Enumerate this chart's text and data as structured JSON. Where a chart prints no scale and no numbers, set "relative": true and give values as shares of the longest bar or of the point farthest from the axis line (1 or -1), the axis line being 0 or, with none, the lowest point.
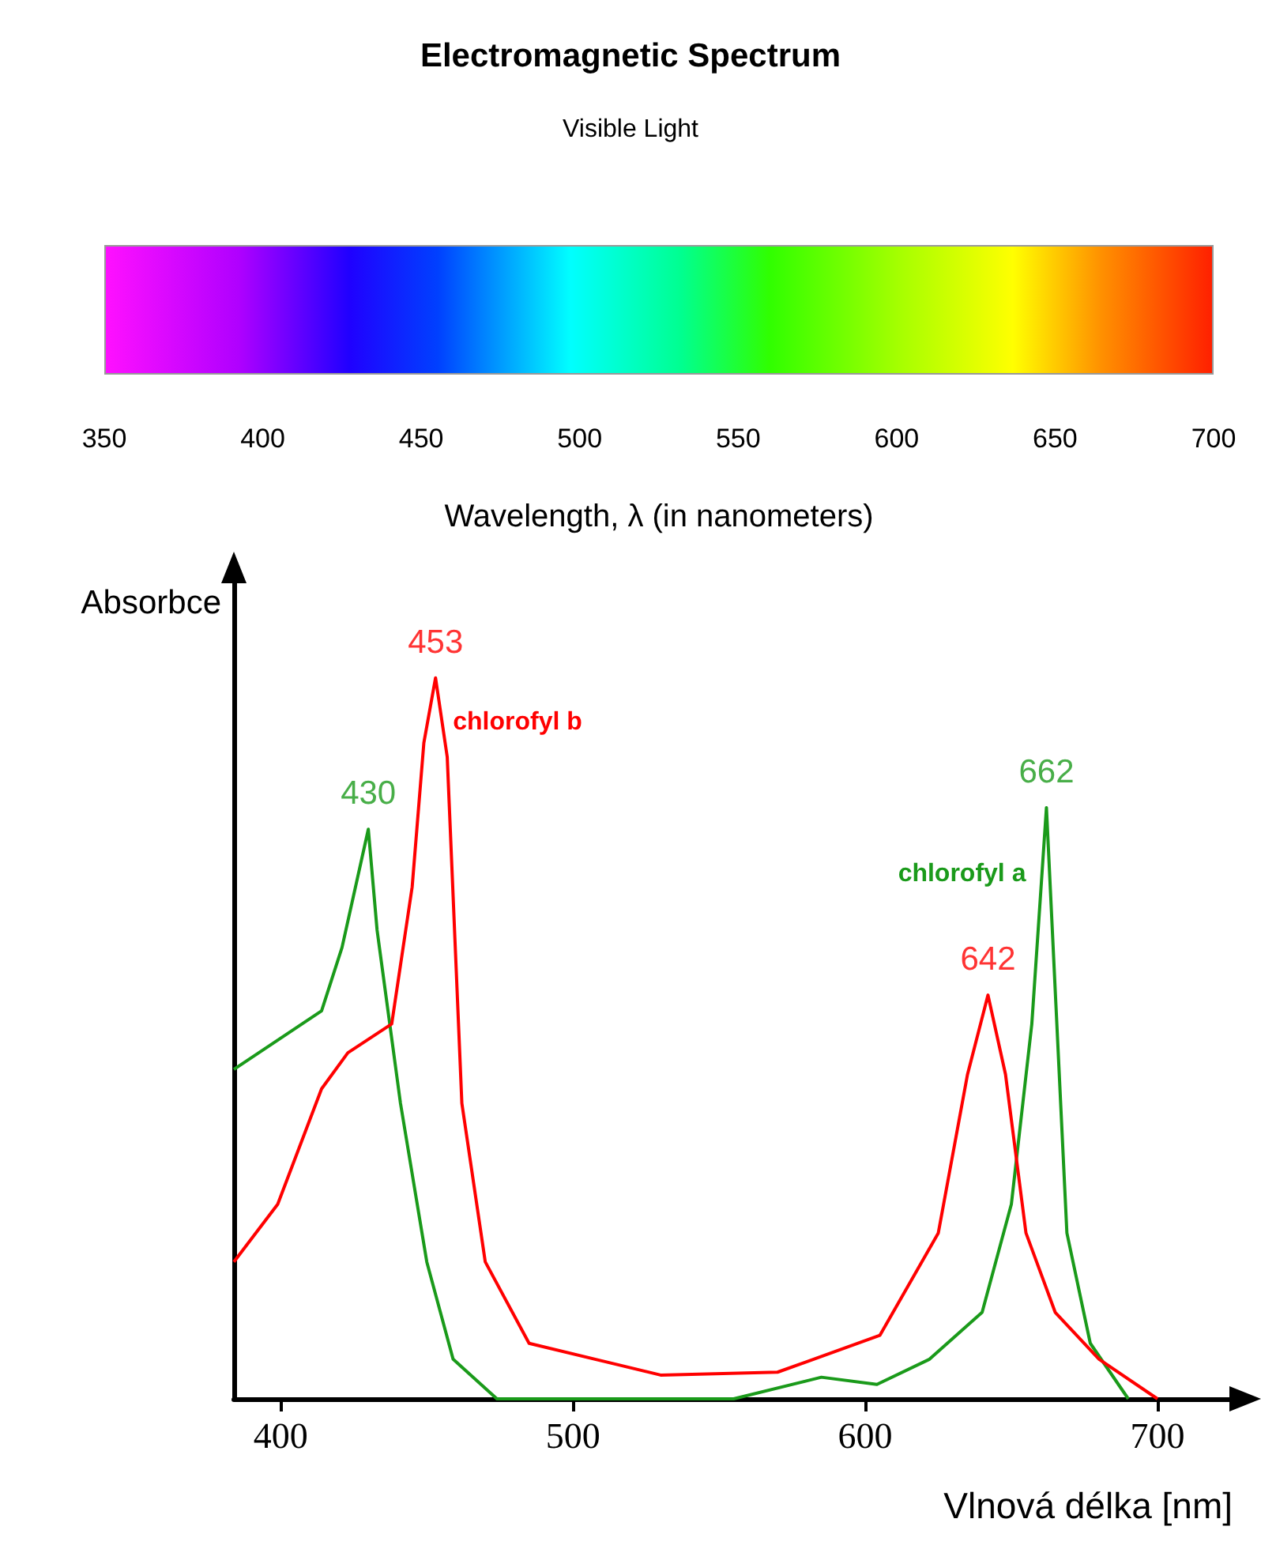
{
  "chart_data": {
    "type": "line",
    "relative": true,
    "title": "Electromagnetic Spectrum",
    "subtitle": "Visible Light",
    "x2label": "Wavelength, λ (in nanometers)",
    "x2lim": [
      350,
      700
    ],
    "x2ticks": [
      350,
      400,
      450,
      500,
      550,
      600,
      650,
      700
    ],
    "xlabel": "Vlnová délka [nm]",
    "ylabel": "Absorbce",
    "xlim": [
      384,
      730
    ],
    "xticks": [
      400,
      500,
      600,
      700
    ],
    "grid": false,
    "legend": false,
    "marker": "none",
    "series": [
      {
        "name": "chlorofyl a",
        "color": "#1a9a1a",
        "x": [
          384,
          414,
          421,
          430,
          433,
          441,
          450,
          459,
          474,
          555,
          585,
          604,
          622,
          640,
          650,
          657,
          662,
          669,
          677,
          690
        ],
        "values": [
          0.457,
          0.538,
          0.626,
          0.79,
          0.65,
          0.41,
          0.19,
          0.055,
          0,
          0,
          0.03,
          0.02,
          0.055,
          0.12,
          0.27,
          0.52,
          0.82,
          0.23,
          0.077,
          0
        ]
      },
      {
        "name": "chlorofyl b",
        "color": "#ff0000",
        "x": [
          384,
          399,
          414,
          423,
          438,
          445,
          449,
          453,
          457,
          462,
          470,
          485,
          530,
          570,
          605,
          625,
          635,
          642,
          648,
          655,
          665,
          680,
          700
        ],
        "values": [
          0.19,
          0.27,
          0.43,
          0.48,
          0.52,
          0.71,
          0.91,
          1,
          0.89,
          0.41,
          0.19,
          0.077,
          0.033,
          0.037,
          0.088,
          0.23,
          0.45,
          0.56,
          0.45,
          0.23,
          0.12,
          0.055,
          0
        ]
      }
    ],
    "annotations": [
      {
        "text": "430",
        "x": 430,
        "y": 0.79
      },
      {
        "text": "453",
        "x": 453,
        "y": 1
      },
      {
        "text": "642",
        "x": 642,
        "y": 0.56
      },
      {
        "text": "662",
        "x": 662,
        "y": 0.82
      }
    ]
  }
}
